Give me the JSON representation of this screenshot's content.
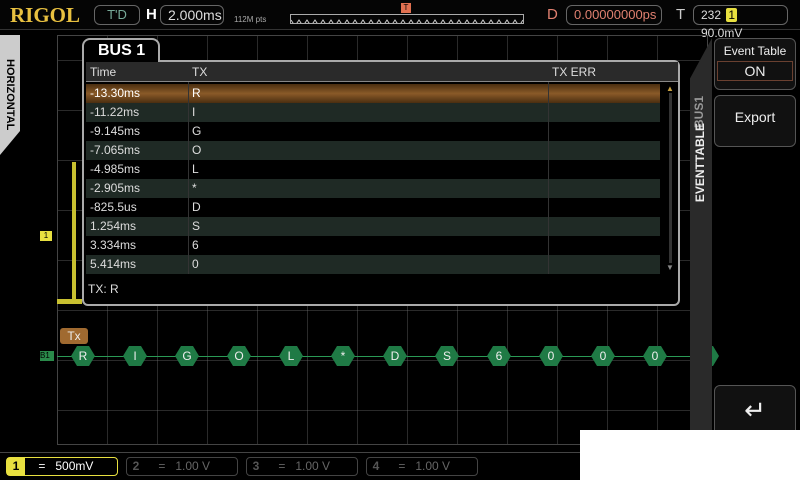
{
  "top": {
    "brand": "RIGOL",
    "trig_status": "T'D",
    "h_label": "H",
    "timebase": "2.000ms",
    "mem_depth": "112M pts",
    "d_label": "D",
    "delay": "0.00000000ps",
    "t_label": "T",
    "trig_count": "232",
    "trig_channel": "1",
    "trig_level": "90.0mV"
  },
  "left_tab": "HORIZONTAL",
  "panel": {
    "tab": "BUS 1",
    "columns": [
      "Time",
      "TX",
      "TX ERR"
    ],
    "rows": [
      {
        "time": "-13.30ms",
        "tx": "R",
        "err": ""
      },
      {
        "time": "-11.22ms",
        "tx": "I",
        "err": ""
      },
      {
        "time": "-9.145ms",
        "tx": "G",
        "err": ""
      },
      {
        "time": "-7.065ms",
        "tx": "O",
        "err": ""
      },
      {
        "time": "-4.985ms",
        "tx": "L",
        "err": ""
      },
      {
        "time": "-2.905ms",
        "tx": "*",
        "err": ""
      },
      {
        "time": "-825.5us",
        "tx": "D",
        "err": ""
      },
      {
        "time": "1.254ms",
        "tx": "S",
        "err": ""
      },
      {
        "time": "3.334ms",
        "tx": "6",
        "err": ""
      },
      {
        "time": "5.414ms",
        "tx": "0",
        "err": ""
      }
    ],
    "selected_row": 0,
    "footer": "TX: R"
  },
  "decode": {
    "label": "Tx",
    "bus_marker": "B1",
    "ch1_marker": "1",
    "frames": [
      "R",
      "I",
      "G",
      "O",
      "L",
      "*",
      "D",
      "S",
      "6",
      "0",
      "0",
      "0",
      "*"
    ]
  },
  "menu": {
    "tab_top": "BUS1",
    "tab_bottom": "EVENTTABLE",
    "event_table_label": "Event Table",
    "event_table_value": "ON",
    "export": "Export",
    "back_icon": "return-arrow"
  },
  "channels": [
    {
      "num": "1",
      "coupling": "=",
      "scale": "500mV",
      "active": true
    },
    {
      "num": "2",
      "coupling": "=",
      "scale": "1.00 V",
      "active": false
    },
    {
      "num": "3",
      "coupling": "=",
      "scale": "1.00 V",
      "active": false
    },
    {
      "num": "4",
      "coupling": "=",
      "scale": "1.00 V",
      "active": false
    }
  ],
  "colors": {
    "ch1": "#e8e040",
    "brand": "#e8c040",
    "decode": "#1f7a45",
    "selected": "#8a5a28",
    "delay": "#e08070"
  }
}
